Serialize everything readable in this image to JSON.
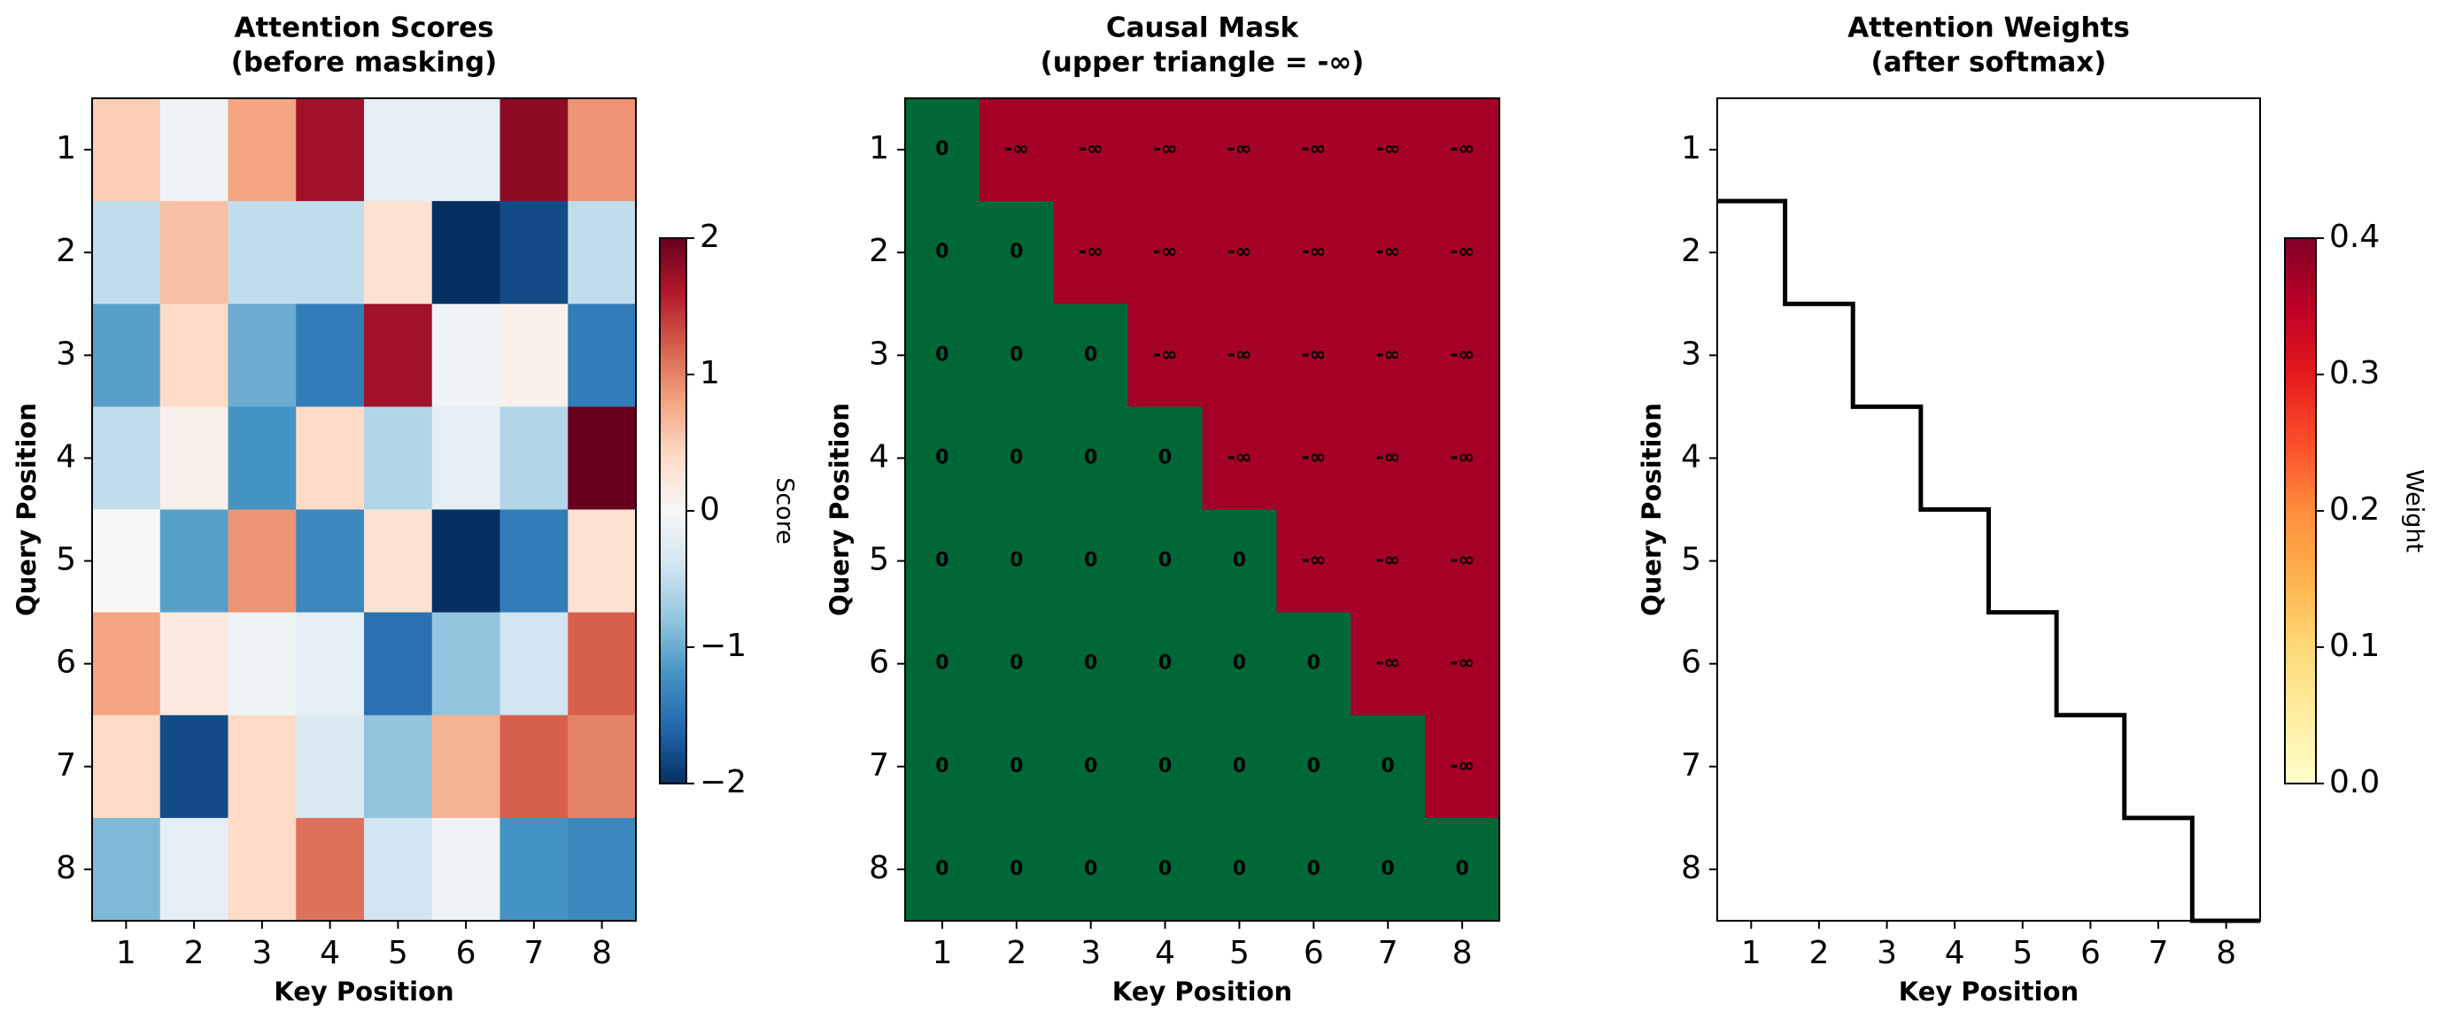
{
  "chart_data": [
    {
      "type": "heatmap",
      "title": [
        "Attention Scores",
        "(before masking)"
      ],
      "x_label": "Key Position",
      "y_label": "Query Position",
      "xticks": [
        1,
        2,
        3,
        4,
        5,
        6,
        7,
        8
      ],
      "yticks": [
        1,
        2,
        3,
        4,
        5,
        6,
        7,
        8
      ],
      "xlim": [
        0.5,
        8.5
      ],
      "ylim": [
        8.5,
        0.5
      ],
      "values": [
        [
          0.5,
          -0.1,
          0.8,
          1.7,
          -0.2,
          -0.2,
          1.8,
          0.9
        ],
        [
          -0.5,
          0.6,
          -0.5,
          -0.5,
          0.3,
          -2.0,
          -1.8,
          -0.5
        ],
        [
          -1.1,
          0.4,
          -1.0,
          -1.4,
          1.7,
          -0.1,
          0.1,
          -1.4
        ],
        [
          -0.5,
          0.1,
          -1.2,
          0.4,
          -0.6,
          -0.2,
          -0.6,
          2.0
        ],
        [
          0.0,
          -1.1,
          0.9,
          -1.3,
          0.3,
          -2.0,
          -1.4,
          0.3
        ],
        [
          0.8,
          0.2,
          -0.1,
          -0.2,
          -1.5,
          -0.8,
          -0.4,
          1.2
        ],
        [
          0.4,
          -1.8,
          0.4,
          -0.3,
          -0.8,
          0.7,
          1.2,
          1.0
        ],
        [
          -0.9,
          -0.2,
          0.4,
          1.1,
          -0.4,
          -0.1,
          -1.2,
          -1.3
        ]
      ],
      "colorscale": [
        "#053061",
        "#2166ac",
        "#4393c3",
        "#92c5de",
        "#d1e5f0",
        "#f7f7f7",
        "#fddbc7",
        "#f4a582",
        "#d6604d",
        "#b2182b",
        "#67001f"
      ],
      "cbar_lim": [
        -2,
        2
      ],
      "cbar_ticks": [
        {
          "value": -2,
          "label": "−2"
        },
        {
          "value": -1,
          "label": "−1"
        },
        0,
        1,
        2
      ],
      "cbar_label": "Score"
    },
    {
      "type": "mask",
      "title": [
        "Causal Mask",
        "(upper triangle = -∞)"
      ],
      "x_label": "Key Position",
      "y_label": "Query Position",
      "xticks": [
        1,
        2,
        3,
        4,
        5,
        6,
        7,
        8
      ],
      "yticks": [
        1,
        2,
        3,
        4,
        5,
        6,
        7,
        8
      ],
      "xlim": [
        0.5,
        8.5
      ],
      "ylim": [
        8.5,
        0.5
      ],
      "cells": [
        [
          "0",
          "-∞",
          "-∞",
          "-∞",
          "-∞",
          "-∞",
          "-∞",
          "-∞"
        ],
        [
          "0",
          "0",
          "-∞",
          "-∞",
          "-∞",
          "-∞",
          "-∞",
          "-∞"
        ],
        [
          "0",
          "0",
          "0",
          "-∞",
          "-∞",
          "-∞",
          "-∞",
          "-∞"
        ],
        [
          "0",
          "0",
          "0",
          "0",
          "-∞",
          "-∞",
          "-∞",
          "-∞"
        ],
        [
          "0",
          "0",
          "0",
          "0",
          "0",
          "-∞",
          "-∞",
          "-∞"
        ],
        [
          "0",
          "0",
          "0",
          "0",
          "0",
          "0",
          "-∞",
          "-∞"
        ],
        [
          "0",
          "0",
          "0",
          "0",
          "0",
          "0",
          "0",
          "-∞"
        ],
        [
          "0",
          "0",
          "0",
          "0",
          "0",
          "0",
          "0",
          "0"
        ]
      ],
      "cell_colors": {
        "0": "#006837",
        "-∞": "#a50026"
      },
      "text_colors": {
        "0": "#000000",
        "-∞": "#ffffff"
      }
    },
    {
      "type": "weights",
      "title": [
        "Attention Weights",
        "(after softmax)"
      ],
      "x_label": "Key Position",
      "y_label": "Query Position",
      "xticks": [
        1,
        2,
        3,
        4,
        5,
        6,
        7,
        8
      ],
      "yticks": [
        1,
        2,
        3,
        4,
        5,
        6,
        7,
        8
      ],
      "xlim": [
        0.5,
        8.5
      ],
      "ylim": [
        8.5,
        0.5
      ],
      "colorscale": [
        "#ffffcc",
        "#ffeda0",
        "#fed976",
        "#feb24c",
        "#fd8d3c",
        "#fc4e2a",
        "#e31a1c",
        "#bd0026",
        "#800026"
      ],
      "cbar_lim": [
        0,
        0.4
      ],
      "cbar_ticks": [
        {
          "value": 0,
          "label": "0.0"
        },
        0.1,
        0.2,
        0.3,
        0.4
      ],
      "cbar_label": "Weight"
    }
  ]
}
